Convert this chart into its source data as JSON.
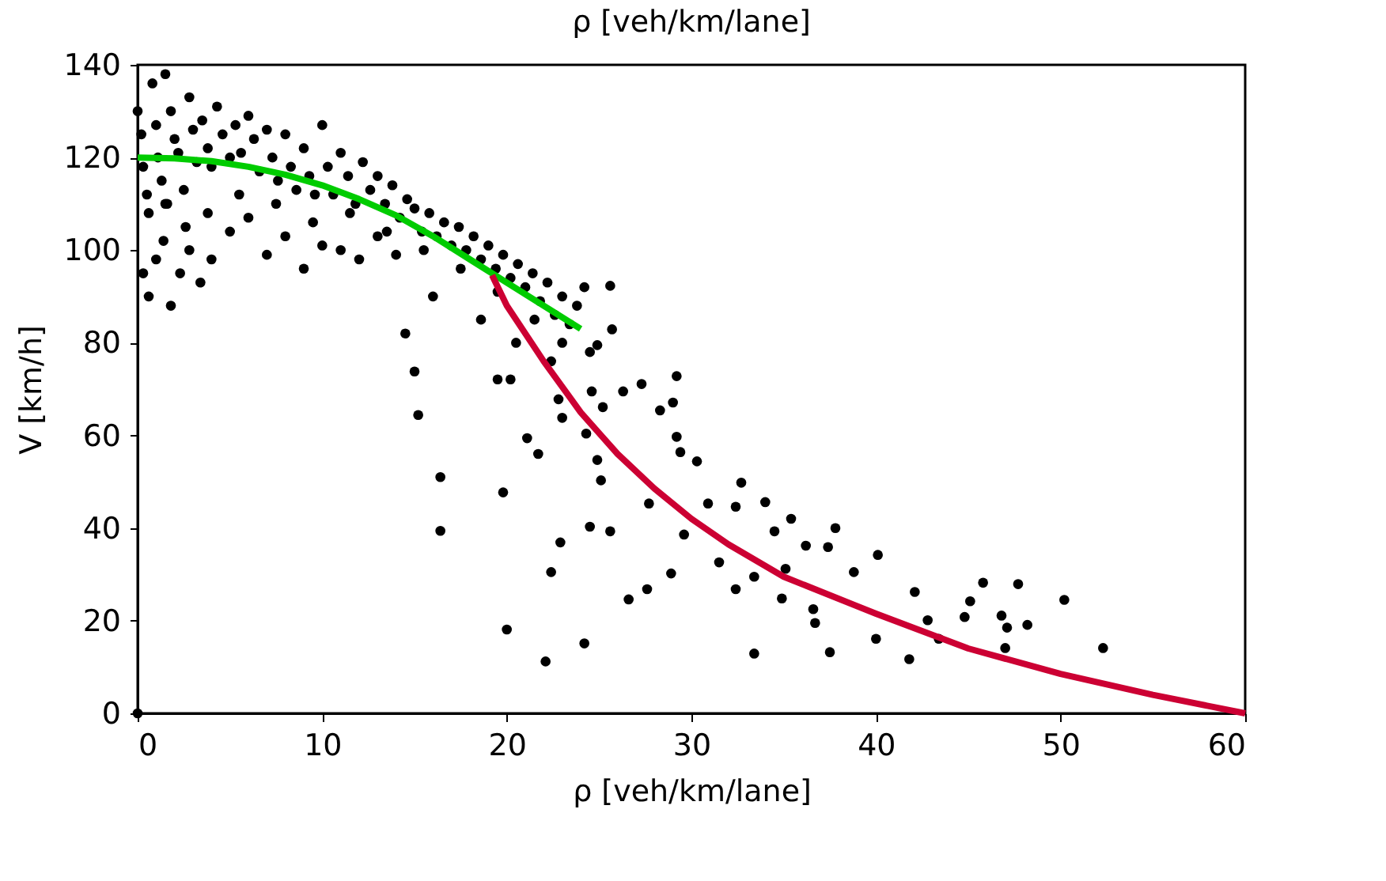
{
  "chart_data": {
    "type": "scatter",
    "title": "ρ [veh/km/lane]",
    "xlabel": "ρ [veh/km/lane]",
    "ylabel": "V [km/h]",
    "xlim": [
      0,
      60
    ],
    "xticks": [
      0,
      10,
      20,
      30,
      40,
      50,
      60
    ],
    "ylim": [
      0,
      140
    ],
    "yticks": [
      0,
      20,
      40,
      60,
      80,
      100,
      120,
      140
    ],
    "grid": false,
    "series": [
      {
        "marker": "circle",
        "color": "#000000",
        "x": [
          0,
          0.2,
          0.3,
          0.5,
          0.6,
          0.8,
          1,
          1.1,
          1.3,
          1.5,
          1.6,
          1.8,
          2,
          2.2,
          2.5,
          2.8,
          3,
          3.2,
          3.5,
          3.8,
          4,
          4.3,
          4.6,
          5,
          5.3,
          5.6,
          6,
          6.3,
          6.6,
          7,
          7.3,
          7.6,
          8,
          8.3,
          8.6,
          9,
          9.3,
          9.6,
          10,
          10.3,
          10.6,
          11,
          11.4,
          11.8,
          12.2,
          12.6,
          13,
          13.4,
          13.8,
          14.2,
          14.6,
          15,
          15.4,
          15.8,
          16.2,
          16.6,
          17,
          17.4,
          17.8,
          18.2,
          18.6,
          19,
          19.4,
          19.8,
          20.2,
          20.6,
          21,
          21.4,
          21.8,
          22.2,
          22.6,
          23,
          23.4,
          23.8,
          24.2,
          0.3,
          0.6,
          1,
          1.4,
          1.8,
          2.3,
          2.8,
          3.4,
          4,
          5,
          6,
          7,
          8,
          9,
          10,
          11,
          12,
          13,
          14,
          1.5,
          2.6,
          3.8,
          5.5,
          7.5,
          9.5,
          11.5,
          13.5,
          15.5,
          17.5,
          19.5,
          21.5,
          23,
          24.5,
          15.2,
          15,
          14.5,
          16,
          18.6,
          20.5,
          22.4,
          29.2,
          32.7,
          37.8,
          40.1,
          42.1,
          45.8,
          47.7,
          50.2,
          52.3,
          41.8,
          33.4,
          37.5,
          22.1,
          20.0,
          24.2,
          26.6,
          27.6,
          28.9,
          22.4,
          22.9,
          24.5,
          25.6,
          19.8,
          21.1,
          21.7,
          16.4,
          16.4,
          27.7,
          29.6,
          30.9,
          32.4,
          34.0,
          34.5,
          35.4,
          36.2,
          37.4,
          38.8,
          33.4,
          34.9,
          36.6,
          36.7,
          40.0,
          42.8,
          44.8,
          45.1,
          46.8,
          47.1,
          48.2,
          47.0,
          43.4,
          31.5,
          32.4,
          35.1,
          27.3,
          29.0,
          28.3,
          26.3,
          25.2,
          22.8,
          23.0,
          24.3,
          24.9,
          25.1,
          29.2,
          29.4,
          30.3,
          19.5,
          20.2,
          25.6,
          25.7,
          24.9,
          24.6,
          0
        ],
        "values": [
          130,
          125,
          118,
          112,
          108,
          136,
          127,
          120,
          115,
          138,
          110,
          130,
          124,
          121,
          113,
          133,
          126,
          119,
          128,
          122,
          118,
          131,
          125,
          120,
          127,
          121,
          129,
          124,
          117,
          126,
          120,
          115,
          125,
          118,
          113,
          122,
          116,
          112,
          127,
          118,
          112,
          121,
          116,
          110,
          119,
          113,
          116,
          110,
          114,
          107,
          111,
          109,
          104,
          108,
          103,
          106,
          101,
          105,
          100,
          103,
          98,
          101,
          96,
          99,
          94,
          97,
          92,
          95,
          89,
          93,
          86,
          90,
          84,
          88,
          92,
          95,
          90,
          98,
          102,
          88,
          95,
          100,
          93,
          98,
          104,
          107,
          99,
          103,
          96,
          101,
          100,
          98,
          103,
          99,
          110,
          105,
          108,
          112,
          110,
          106,
          108,
          104,
          100,
          96,
          91,
          85,
          80,
          78,
          64.4,
          73.8,
          82,
          90,
          85,
          80,
          76,
          72.8,
          49.8,
          40,
          34.2,
          26.2,
          28.2,
          27.9,
          24.5,
          14.1,
          11.7,
          12.9,
          13.2,
          11.2,
          18.1,
          15.1,
          24.6,
          26.8,
          30.2,
          30.5,
          36.9,
          40.3,
          39.3,
          47.7,
          59.4,
          56,
          51,
          39.4,
          45.3,
          38.6,
          45.3,
          44.6,
          45.6,
          39.3,
          42,
          36.2,
          35.9,
          30.5,
          29.5,
          24.8,
          22.5,
          19.5,
          16.1,
          20.1,
          20.8,
          24.2,
          21.1,
          18.5,
          19.1,
          14.1,
          16.1,
          32.6,
          26.8,
          31.2,
          71.1,
          67.1,
          65.4,
          69.5,
          66.1,
          67.8,
          63.8,
          60.4,
          54.7,
          50.3,
          59.7,
          56.4,
          54.4,
          72.1,
          72.1,
          92.3,
          82.9,
          79.5,
          69.5,
          0
        ]
      },
      {
        "type": "line",
        "color": "#00cc00",
        "x": [
          0,
          2,
          4,
          6,
          8,
          10,
          12,
          14,
          16,
          18,
          20,
          22,
          24
        ],
        "values": [
          120,
          119.8,
          119.2,
          118,
          116.3,
          114,
          111,
          107.5,
          103,
          98,
          93,
          88,
          83
        ]
      },
      {
        "type": "line",
        "color": "#cc0033",
        "x": [
          19.2,
          20,
          22,
          24,
          26,
          28,
          30,
          32,
          35,
          40,
          45,
          50,
          55,
          60
        ],
        "values": [
          94.6,
          88,
          76,
          65,
          56,
          48.5,
          42,
          36.5,
          29.5,
          21.5,
          14,
          8.5,
          4,
          0
        ]
      }
    ]
  }
}
